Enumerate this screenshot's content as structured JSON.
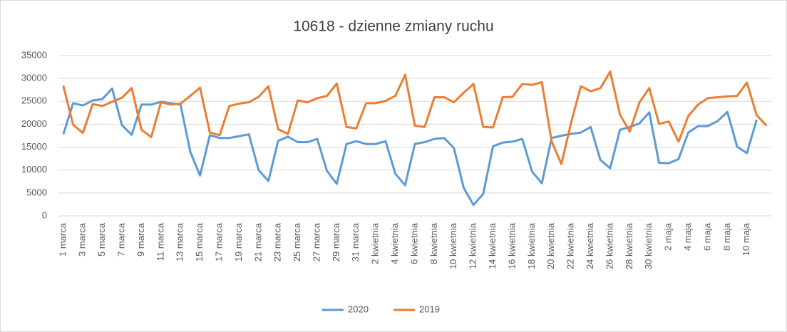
{
  "chart_data": {
    "type": "line",
    "title": "10618 - dzienne zmiany ruchu",
    "categories": [
      "1 marca",
      null,
      "3 marca",
      null,
      "5 marca",
      null,
      "7 marca",
      null,
      "9 marca",
      null,
      "11 marca",
      null,
      "13 marca",
      null,
      "15 marca",
      null,
      "17 marca",
      null,
      "19 marca",
      null,
      "21 marca",
      null,
      "23 marca",
      null,
      "25 marca",
      null,
      "27 marca",
      null,
      "29 marca",
      null,
      "31 marca",
      null,
      "2 kwietnia",
      null,
      "4 kwietnia",
      null,
      "6 kwietnia",
      null,
      "8 kwietnia",
      null,
      "10 kwietnia",
      null,
      "12 kwietnia",
      null,
      "14 kwietnia",
      null,
      "16 kwietnia",
      null,
      "18 kwietnia",
      null,
      "20 kwietnia",
      null,
      "22 kwietnia",
      null,
      "24 kwietnia",
      null,
      "26 kwietnia",
      null,
      "28 kwietnia",
      null,
      "30 kwietnia",
      null,
      "2 maja",
      null,
      "4 maja",
      null,
      "6 maja",
      null,
      "8 maja",
      null,
      "10 maja",
      null,
      null
    ],
    "series": [
      {
        "name": "2020",
        "color": "#5b9bd5",
        "values": [
          17800,
          24600,
          24100,
          25200,
          25500,
          27800,
          19800,
          17700,
          24300,
          24300,
          24900,
          24600,
          24300,
          14000,
          8800,
          17600,
          17000,
          17000,
          17400,
          17800,
          10000,
          7600,
          16400,
          17300,
          16100,
          16100,
          16800,
          9800,
          7000,
          15700,
          16300,
          15700,
          15700,
          16300,
          9200,
          6700,
          15700,
          16100,
          16800,
          17000,
          14800,
          6100,
          2400,
          4800,
          15200,
          16000,
          16200,
          16800,
          9700,
          7100,
          17000,
          17500,
          17900,
          18200,
          19400,
          12200,
          10400,
          18800,
          19400,
          20200,
          22600,
          11600,
          11500,
          12400,
          18200,
          19600,
          19600,
          20700,
          22700,
          15100,
          13700,
          21000,
          null
        ]
      },
      {
        "name": "2019",
        "color": "#ed7d31",
        "values": [
          28400,
          19900,
          18100,
          24400,
          24000,
          24900,
          25800,
          27900,
          18800,
          17200,
          24800,
          24300,
          24500,
          26200,
          28000,
          18200,
          17600,
          24000,
          24500,
          24800,
          26000,
          28300,
          18900,
          17900,
          25200,
          24800,
          25700,
          26200,
          28900,
          19400,
          19100,
          24600,
          24600,
          25100,
          26200,
          30800,
          19700,
          19400,
          25900,
          25900,
          24800,
          26900,
          28800,
          19400,
          19300,
          25900,
          26000,
          28800,
          28600,
          29200,
          16300,
          11300,
          20400,
          28300,
          27200,
          27900,
          31500,
          22100,
          18400,
          24800,
          27900,
          20100,
          20600,
          16200,
          21800,
          24300,
          25700,
          25900,
          26100,
          26200,
          29100,
          22000,
          19700
        ]
      }
    ],
    "ylim": [
      0,
      35000
    ],
    "yticks": [
      0,
      5000,
      10000,
      15000,
      20000,
      25000,
      30000,
      35000
    ],
    "grid": true,
    "legend": "bottom"
  }
}
